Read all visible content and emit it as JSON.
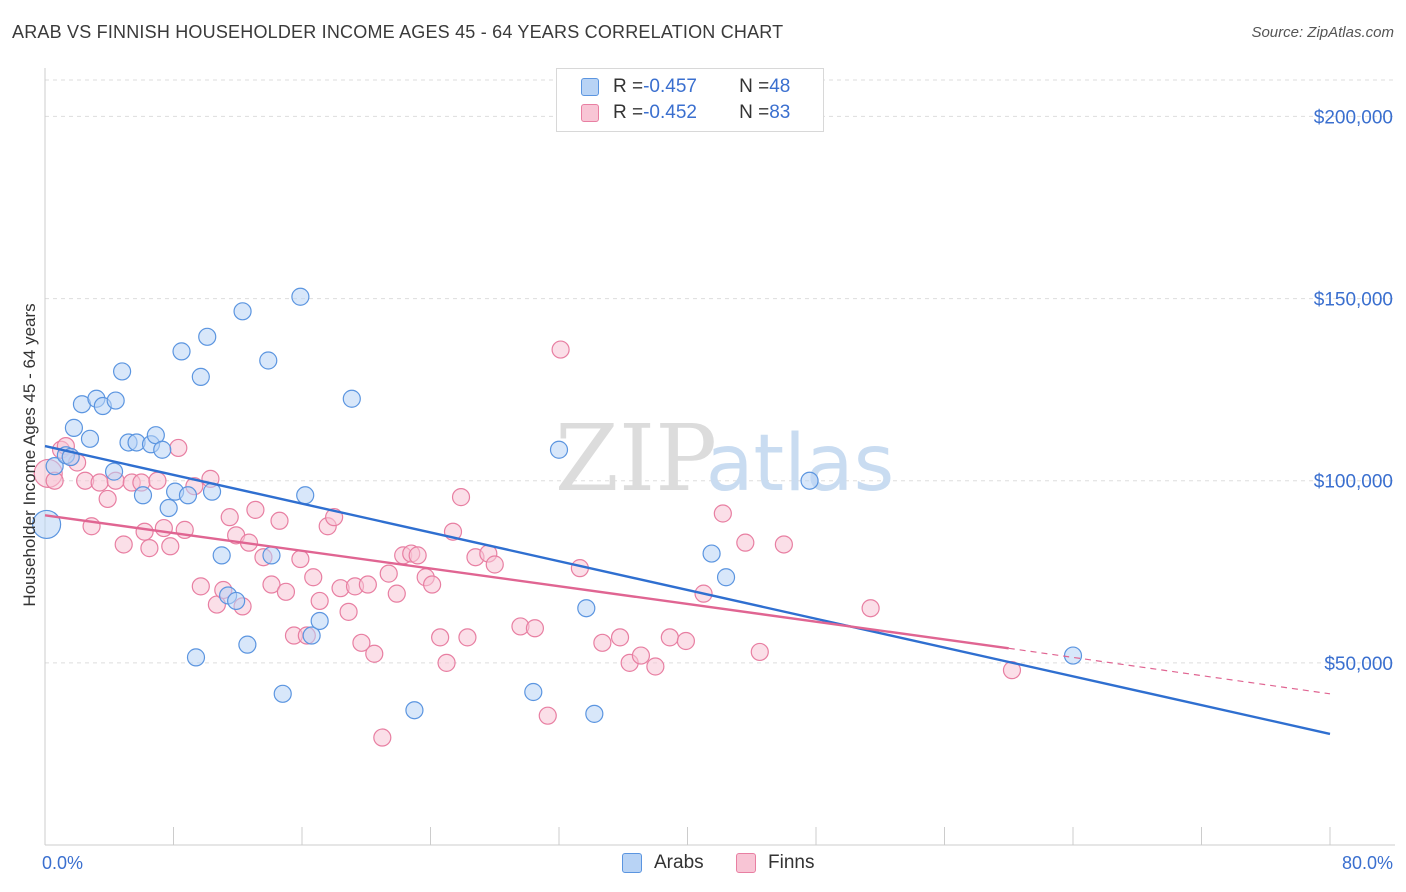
{
  "title": "ARAB VS FINNISH HOUSEHOLDER INCOME AGES 45 - 64 YEARS CORRELATION CHART",
  "source": "Source: ZipAtlas.com",
  "watermark": {
    "zip": "ZIP",
    "atlas": "atlas"
  },
  "legend": {
    "arabs": {
      "r_label": "R = ",
      "r_value": "-0.457",
      "n_label": "N = ",
      "n_value": "48"
    },
    "finns": {
      "r_label": "R = ",
      "r_value": "-0.452",
      "n_label": "N = ",
      "n_value": "83"
    }
  },
  "colors": {
    "arabs_fill": "#b8d3f5",
    "arabs_stroke": "#5b95e0",
    "arabs_line": "#2f6fd0",
    "finns_fill": "#f8c5d5",
    "finns_stroke": "#e87fa2",
    "finns_line": "#e06592",
    "grid": "#dddddd",
    "axis_text": "#3a6fcf"
  },
  "chart_data": {
    "type": "scatter",
    "title": "ARAB VS FINNISH HOUSEHOLDER INCOME AGES 45 - 64 YEARS CORRELATION CHART",
    "xlabel": "",
    "ylabel": "Householder Income Ages 45 - 64 years",
    "xlim": [
      0,
      80
    ],
    "ylim": [
      0,
      210000
    ],
    "x_tick_labels": [
      "0.0%",
      "80.0%"
    ],
    "y_ticks": [
      50000,
      100000,
      150000,
      200000
    ],
    "y_tick_labels": [
      "$50,000",
      "$100,000",
      "$150,000",
      "$200,000"
    ],
    "grid": true,
    "legend_position": "top-center",
    "series": [
      {
        "name": "Arabs",
        "r": -0.457,
        "n": 48,
        "trend": {
          "x": [
            0,
            80
          ],
          "y": [
            109500,
            30500
          ]
        },
        "points": [
          [
            0.1,
            88000
          ],
          [
            0.6,
            104000
          ],
          [
            1.3,
            107000
          ],
          [
            1.8,
            114500
          ],
          [
            2.3,
            121000
          ],
          [
            2.8,
            111500
          ],
          [
            3.2,
            122500
          ],
          [
            3.6,
            120500
          ],
          [
            4.3,
            102500
          ],
          [
            4.4,
            122000
          ],
          [
            4.8,
            130000
          ],
          [
            5.2,
            110500
          ],
          [
            5.7,
            110500
          ],
          [
            6.1,
            96000
          ],
          [
            6.6,
            110000
          ],
          [
            6.9,
            112500
          ],
          [
            7.3,
            108500
          ],
          [
            7.7,
            92500
          ],
          [
            8.1,
            97000
          ],
          [
            8.5,
            135500
          ],
          [
            8.9,
            96000
          ],
          [
            9.4,
            51500
          ],
          [
            9.7,
            128500
          ],
          [
            10.1,
            139500
          ],
          [
            10.4,
            97000
          ],
          [
            11.0,
            79500
          ],
          [
            11.4,
            68500
          ],
          [
            11.9,
            67000
          ],
          [
            12.3,
            146500
          ],
          [
            12.6,
            55000
          ],
          [
            13.9,
            133000
          ],
          [
            14.1,
            79500
          ],
          [
            14.8,
            41500
          ],
          [
            15.9,
            150500
          ],
          [
            16.2,
            96000
          ],
          [
            16.6,
            57500
          ],
          [
            17.1,
            61500
          ],
          [
            19.1,
            122500
          ],
          [
            23.0,
            37000
          ],
          [
            30.4,
            42000
          ],
          [
            32.0,
            108500
          ],
          [
            33.7,
            65000
          ],
          [
            34.2,
            36000
          ],
          [
            41.5,
            80000
          ],
          [
            42.4,
            73500
          ],
          [
            47.6,
            100000
          ],
          [
            64.0,
            52000
          ],
          [
            1.6,
            106500
          ]
        ]
      },
      {
        "name": "Finns",
        "r": -0.452,
        "n": 83,
        "trend": {
          "x": [
            0,
            60
          ],
          "y": [
            90500,
            54000
          ]
        },
        "trend_dashed": {
          "x": [
            60,
            80
          ],
          "y": [
            54000,
            41500
          ]
        },
        "points": [
          [
            0.2,
            102000
          ],
          [
            0.6,
            100000
          ],
          [
            1.0,
            108500
          ],
          [
            1.3,
            109500
          ],
          [
            1.6,
            106500
          ],
          [
            2.0,
            105000
          ],
          [
            2.5,
            100000
          ],
          [
            2.9,
            87500
          ],
          [
            3.4,
            99500
          ],
          [
            3.9,
            95000
          ],
          [
            4.4,
            100000
          ],
          [
            4.9,
            82500
          ],
          [
            5.4,
            99500
          ],
          [
            6.0,
            99500
          ],
          [
            6.2,
            86000
          ],
          [
            6.5,
            81500
          ],
          [
            7.0,
            100000
          ],
          [
            7.4,
            87000
          ],
          [
            7.8,
            82000
          ],
          [
            8.3,
            109000
          ],
          [
            8.7,
            86500
          ],
          [
            9.3,
            98500
          ],
          [
            9.7,
            71000
          ],
          [
            10.3,
            100500
          ],
          [
            10.7,
            66000
          ],
          [
            11.1,
            70000
          ],
          [
            11.5,
            90000
          ],
          [
            11.9,
            85000
          ],
          [
            12.3,
            65500
          ],
          [
            12.7,
            83000
          ],
          [
            13.1,
            92000
          ],
          [
            13.6,
            79000
          ],
          [
            14.1,
            71500
          ],
          [
            14.6,
            89000
          ],
          [
            15.0,
            69500
          ],
          [
            15.5,
            57500
          ],
          [
            15.9,
            78500
          ],
          [
            16.3,
            57500
          ],
          [
            16.7,
            73500
          ],
          [
            17.1,
            67000
          ],
          [
            17.6,
            87500
          ],
          [
            18.0,
            90000
          ],
          [
            18.4,
            70500
          ],
          [
            18.9,
            64000
          ],
          [
            19.3,
            71000
          ],
          [
            19.7,
            55500
          ],
          [
            20.1,
            71500
          ],
          [
            20.5,
            52500
          ],
          [
            21.0,
            29500
          ],
          [
            21.4,
            74500
          ],
          [
            21.9,
            69000
          ],
          [
            22.3,
            79500
          ],
          [
            22.8,
            80000
          ],
          [
            23.2,
            79500
          ],
          [
            23.7,
            73500
          ],
          [
            24.1,
            71500
          ],
          [
            24.6,
            57000
          ],
          [
            25.0,
            50000
          ],
          [
            25.4,
            86000
          ],
          [
            25.9,
            95500
          ],
          [
            26.3,
            57000
          ],
          [
            26.8,
            79000
          ],
          [
            27.6,
            80000
          ],
          [
            28.0,
            77000
          ],
          [
            29.6,
            60000
          ],
          [
            30.5,
            59500
          ],
          [
            31.3,
            35500
          ],
          [
            32.1,
            136000
          ],
          [
            33.3,
            76000
          ],
          [
            34.7,
            55500
          ],
          [
            35.8,
            57000
          ],
          [
            36.4,
            50000
          ],
          [
            37.1,
            52000
          ],
          [
            38.0,
            49000
          ],
          [
            38.9,
            57000
          ],
          [
            39.9,
            56000
          ],
          [
            41.0,
            69000
          ],
          [
            42.2,
            91000
          ],
          [
            43.6,
            83000
          ],
          [
            44.5,
            53000
          ],
          [
            46.0,
            82500
          ],
          [
            51.4,
            65000
          ],
          [
            60.2,
            48000
          ]
        ]
      }
    ]
  }
}
